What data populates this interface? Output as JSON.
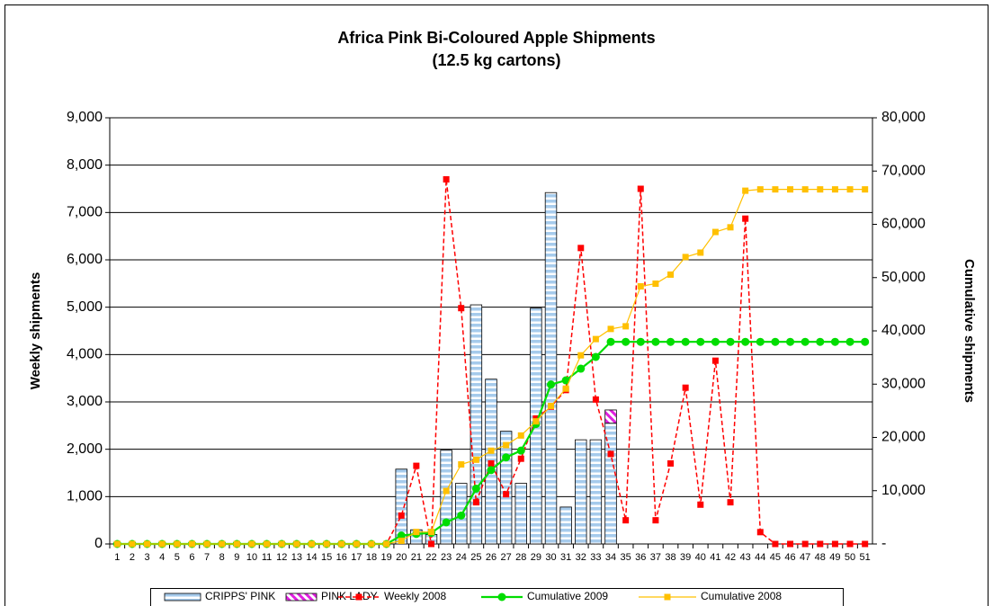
{
  "chart_data": {
    "type": "bar",
    "title": "Africa Pink Bi-Coloured Apple Shipments",
    "subtitle": "(12.5 kg cartons)",
    "y_label": "Weekly shipments",
    "y2_label": "Cumulative shipments",
    "categories": [
      "1",
      "2",
      "3",
      "4",
      "5",
      "6",
      "7",
      "8",
      "9",
      "10",
      "11",
      "12",
      "13",
      "14",
      "15",
      "16",
      "17",
      "18",
      "19",
      "20",
      "21",
      "22",
      "23",
      "24",
      "25",
      "26",
      "27",
      "28",
      "29",
      "30",
      "31",
      "32",
      "33",
      "34",
      "35",
      "36",
      "37",
      "38",
      "39",
      "40",
      "41",
      "42",
      "43",
      "44",
      "45",
      "46",
      "47",
      "48",
      "49",
      "50",
      "51"
    ],
    "ylim": [
      0,
      9000
    ],
    "yticks": [
      0,
      {
        "value": 1000,
        "label": "1,000"
      },
      {
        "value": 2000,
        "label": "2,000"
      },
      {
        "value": 3000,
        "label": "3,000"
      },
      {
        "value": 4000,
        "label": "4,000"
      },
      {
        "value": 5000,
        "label": "5,000"
      },
      {
        "value": 6000,
        "label": "6,000"
      },
      {
        "value": 7000,
        "label": "7,000"
      },
      {
        "value": 8000,
        "label": "8,000"
      },
      {
        "value": 9000,
        "label": "9,000"
      }
    ],
    "y2lim": [
      0,
      80000
    ],
    "y2ticks": [
      {
        "value": 0,
        "label": "-"
      },
      {
        "value": 10000,
        "label": "10,000"
      },
      {
        "value": 20000,
        "label": "20,000"
      },
      {
        "value": 30000,
        "label": "30,000"
      },
      {
        "value": 40000,
        "label": "40,000"
      },
      {
        "value": 50000,
        "label": "50,000"
      },
      {
        "value": 60000,
        "label": "60,000"
      },
      {
        "value": 70000,
        "label": "70,000"
      },
      {
        "value": 80000,
        "label": "80,000"
      }
    ],
    "grid": true,
    "stacked": true,
    "legend": "bottom",
    "series": [
      {
        "name": "CRIPPS' PINK",
        "type": "bar",
        "color": "#a6cbec",
        "pattern": "horizontal-stripes",
        "values": [
          0,
          0,
          0,
          0,
          0,
          0,
          0,
          0,
          0,
          0,
          0,
          0,
          0,
          0,
          0,
          0,
          0,
          0,
          0,
          1580,
          300,
          200,
          1980,
          1280,
          5050,
          3480,
          2380,
          1280,
          4980,
          7420,
          780,
          2200,
          2200,
          2550,
          0,
          0,
          0,
          0,
          0,
          0,
          0,
          0,
          0,
          0,
          0,
          0,
          0,
          0,
          0,
          0,
          0
        ]
      },
      {
        "name": "PINK LADY",
        "type": "bar",
        "color": "#e020e0",
        "pattern": "diagonal-stripes",
        "values": [
          0,
          0,
          0,
          0,
          0,
          0,
          0,
          0,
          0,
          0,
          0,
          0,
          0,
          0,
          0,
          0,
          0,
          0,
          0,
          0,
          0,
          0,
          0,
          0,
          0,
          0,
          0,
          0,
          0,
          0,
          0,
          0,
          0,
          280,
          0,
          0,
          0,
          0,
          0,
          0,
          0,
          0,
          0,
          0,
          0,
          0,
          0,
          0,
          0,
          0,
          0
        ]
      },
      {
        "name": "Weekly 2008",
        "type": "line",
        "color": "#ff0000",
        "line_style": "dashed",
        "marker": "square",
        "values": [
          0,
          0,
          0,
          0,
          0,
          0,
          0,
          0,
          0,
          0,
          0,
          0,
          0,
          0,
          0,
          0,
          0,
          0,
          0,
          600,
          1650,
          0,
          7700,
          4980,
          880,
          1700,
          1050,
          1800,
          2650,
          2900,
          3250,
          6250,
          3050,
          1900,
          500,
          7500,
          500,
          1700,
          3300,
          830,
          3870,
          880,
          6870,
          250,
          0,
          0,
          0,
          0,
          0,
          0,
          0
        ]
      },
      {
        "name": "Cumulative 2009",
        "type": "line",
        "axis": "y2",
        "color": "#00dd00",
        "line_style": "solid",
        "marker": "circle",
        "values": [
          0,
          0,
          0,
          0,
          0,
          0,
          0,
          0,
          0,
          0,
          0,
          0,
          0,
          0,
          0,
          0,
          0,
          0,
          0,
          1580,
          1880,
          2080,
          4060,
          5340,
          10390,
          13870,
          16250,
          17530,
          22510,
          29930,
          30710,
          32910,
          35110,
          37940,
          37940,
          37940,
          37940,
          37940,
          37940,
          37940,
          37940,
          37940,
          37940,
          37940,
          37940,
          37940,
          37940,
          37940,
          37940,
          37940,
          37940
        ]
      },
      {
        "name": "Cumulative 2008",
        "type": "line",
        "axis": "y2",
        "color": "#ffc000",
        "line_style": "thin",
        "marker": "square",
        "values": [
          0,
          0,
          0,
          0,
          0,
          0,
          0,
          0,
          0,
          0,
          0,
          0,
          0,
          0,
          0,
          0,
          0,
          0,
          0,
          600,
          2250,
          2250,
          9950,
          14930,
          15810,
          17510,
          18560,
          20360,
          23010,
          25910,
          29160,
          35410,
          38460,
          40360,
          40860,
          48360,
          48860,
          50560,
          53860,
          54690,
          58560,
          59440,
          66310,
          66560,
          66560,
          66560,
          66560,
          66560,
          66560,
          66560,
          66560
        ]
      }
    ]
  }
}
